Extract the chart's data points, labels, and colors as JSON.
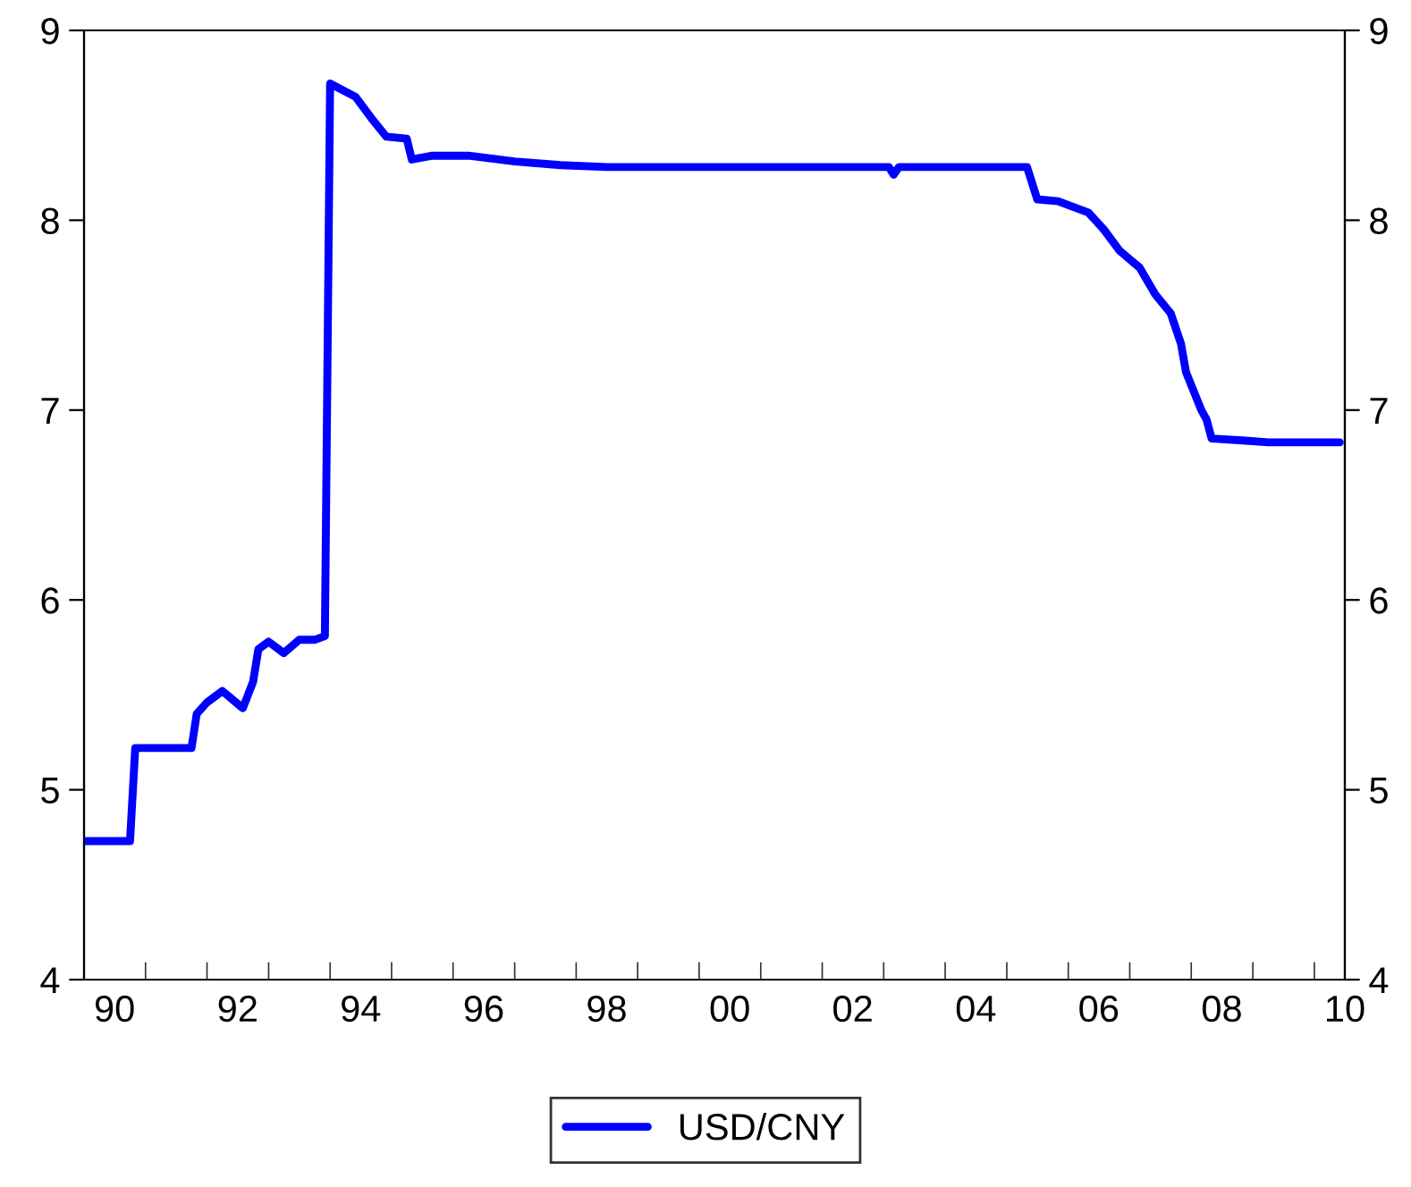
{
  "chart_data": {
    "type": "line",
    "x": [
      "1990-01",
      "1990-10",
      "1990-11",
      "1991-10",
      "1991-11",
      "1992-01",
      "1992-04",
      "1992-08",
      "1992-10",
      "1992-11",
      "1993-01",
      "1993-04",
      "1993-07",
      "1993-10",
      "1993-12",
      "1994-01",
      "1994-06",
      "1994-09",
      "1994-12",
      "1995-04",
      "1995-05",
      "1995-09",
      "1996-04",
      "1997-01",
      "1997-10",
      "1998-07",
      "2003-02",
      "2003-03",
      "2003-04",
      "2005-05",
      "2005-07",
      "2005-11",
      "2006-05",
      "2006-08",
      "2006-11",
      "2007-03",
      "2007-06",
      "2007-09",
      "2007-11",
      "2007-12",
      "2008-03",
      "2008-04",
      "2008-05",
      "2008-11",
      "2009-04",
      "2009-08",
      "2010-06"
    ],
    "series": [
      {
        "name": "USD/CNY",
        "color": "#0000ff",
        "values": [
          4.73,
          4.73,
          5.22,
          5.22,
          5.4,
          5.46,
          5.52,
          5.43,
          5.57,
          5.74,
          5.78,
          5.72,
          5.79,
          5.79,
          5.81,
          8.72,
          8.65,
          8.54,
          8.44,
          8.43,
          8.32,
          8.34,
          8.34,
          8.31,
          8.29,
          8.28,
          8.28,
          8.24,
          8.28,
          8.28,
          8.11,
          8.1,
          8.04,
          7.95,
          7.84,
          7.75,
          7.61,
          7.51,
          7.35,
          7.2,
          7.0,
          6.95,
          6.85,
          6.84,
          6.83,
          6.83,
          6.83
        ]
      }
    ],
    "xlim": [
      "1990-01",
      "2010-07"
    ],
    "xticks": [
      {
        "value": "1991-01",
        "label": null
      },
      {
        "value": "1992-01",
        "label": null
      },
      {
        "value": "1993-01",
        "label": null
      },
      {
        "value": "1994-01",
        "label": null
      },
      {
        "value": "1995-01",
        "label": null
      },
      {
        "value": "1996-01",
        "label": null
      },
      {
        "value": "1997-01",
        "label": null
      },
      {
        "value": "1998-01",
        "label": null
      },
      {
        "value": "1999-01",
        "label": null
      },
      {
        "value": "2000-01",
        "label": null
      },
      {
        "value": "2001-01",
        "label": null
      },
      {
        "value": "2002-01",
        "label": null
      },
      {
        "value": "2003-01",
        "label": null
      },
      {
        "value": "2004-01",
        "label": null
      },
      {
        "value": "2005-01",
        "label": null
      },
      {
        "value": "2006-01",
        "label": null
      },
      {
        "value": "2007-01",
        "label": null
      },
      {
        "value": "2008-01",
        "label": null
      },
      {
        "value": "2009-01",
        "label": null
      },
      {
        "value": "2010-01",
        "label": null
      },
      {
        "value": "1990-07",
        "label": "90"
      },
      {
        "value": "1992-07",
        "label": "92"
      },
      {
        "value": "1994-07",
        "label": "94"
      },
      {
        "value": "1996-07",
        "label": "96"
      },
      {
        "value": "1998-07",
        "label": "98"
      },
      {
        "value": "2000-07",
        "label": "00"
      },
      {
        "value": "2002-07",
        "label": "02"
      },
      {
        "value": "2004-07",
        "label": "04"
      },
      {
        "value": "2006-07",
        "label": "06"
      },
      {
        "value": "2008-07",
        "label": "08"
      },
      {
        "value": "2010-07",
        "label": "10"
      }
    ],
    "ylim": [
      4,
      9
    ],
    "yticks": [
      4,
      5,
      6,
      7,
      8,
      9
    ],
    "y2lim": [
      4,
      9
    ],
    "y2ticks": [
      4,
      5,
      6,
      7,
      8,
      9
    ],
    "legend": "bottom",
    "grid": false,
    "line_style": "solid",
    "marker": "none"
  }
}
